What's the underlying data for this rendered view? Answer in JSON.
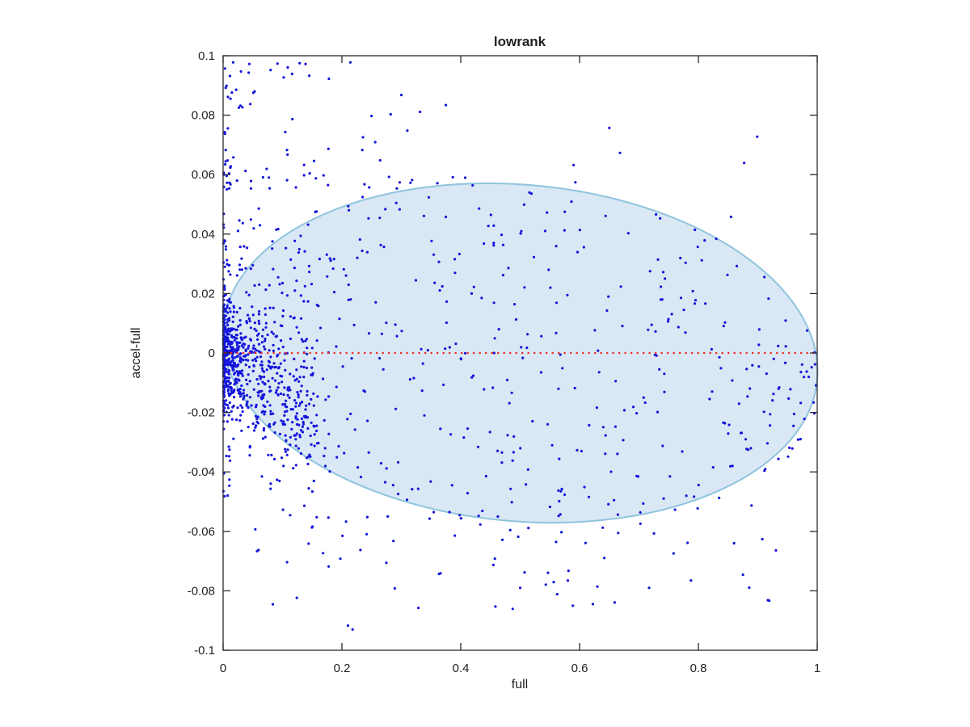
{
  "title": "lowrank",
  "colors": {
    "background": "#ffffff",
    "axis": "#2b2b2b",
    "text": "#1f1f1f",
    "ellipse_fill": "#d9e8f4",
    "ellipse_stroke": "#8fc4de",
    "marker": "#1414dc",
    "zero_line": "#f22b25"
  },
  "chart_data": {
    "type": "scatter",
    "title": "lowrank",
    "xlabel": "full",
    "ylabel": "accel-full",
    "xlim": [
      0,
      1
    ],
    "ylim": [
      -0.1,
      0.1
    ],
    "grid": false,
    "legend": null,
    "x_ticks": {
      "values": [
        0,
        0.2,
        0.4,
        0.6,
        0.8,
        1
      ],
      "labels": [
        "0",
        "0.2",
        "0.4",
        "0.6",
        "0.8",
        "1"
      ]
    },
    "y_ticks": {
      "values": [
        0.1,
        0.08,
        0.06,
        0.04,
        0.02,
        0,
        -0.02,
        -0.04,
        -0.06,
        -0.08,
        -0.1
      ],
      "labels": [
        "0.1",
        "0.08",
        "0.06",
        "0.04",
        "0.02",
        "0",
        "-0.02",
        "-0.04",
        "-0.06",
        "-0.08",
        "-0.1"
      ]
    },
    "ellipse": {
      "shape": "tilted-ellipse",
      "tips": [
        [
          0,
          0.009
        ],
        [
          1,
          -0.009
        ]
      ],
      "vertical_half_extent": 0.0573,
      "fill": "#d9e8f4",
      "stroke": "#8fc4de",
      "stroke_width": 2
    },
    "zero_line": {
      "y": 0,
      "x_range": [
        0,
        1
      ],
      "style": "dotted",
      "color": "#f22b25"
    },
    "marker": {
      "shape": "dot",
      "color": "#1414dc",
      "radius_px": 1.6
    },
    "n_points_approx": 1330,
    "scatter_generator": {
      "seed": 1337,
      "groups": [
        {
          "name": "dense-cluster",
          "n": 660,
          "x": {
            "type": "power",
            "offset": 0.0005,
            "scale": 0.16,
            "exp": 2.4
          },
          "y": {
            "type": "normal-drift",
            "mean_slope": -0.12,
            "sd_base": 0.0085,
            "sd_slope": 0.05
          }
        },
        {
          "name": "cluster-wide-fan",
          "n": 90,
          "x": {
            "type": "power",
            "offset": 0.001,
            "scale": 0.18,
            "exp": 1.8
          },
          "y": {
            "type": "normal-drift",
            "mean_slope": -0.05,
            "sd_base": 0.028,
            "sd_slope": 0.0
          }
        },
        {
          "name": "midfield",
          "n": 430,
          "x": {
            "type": "power",
            "offset": 0.06,
            "scale": 0.94,
            "exp": 1.15
          },
          "y": {
            "type": "envelope-uniform",
            "width_factor": 1.05
          }
        },
        {
          "name": "halo-top-left",
          "n": 66,
          "x": {
            "type": "power",
            "offset": 0.002,
            "scale": 0.33,
            "exp": 2.0
          },
          "y": {
            "type": "band",
            "base": 0.055,
            "range": 0.043,
            "exp": 1.3,
            "sign": 1
          }
        },
        {
          "name": "halo-bottom",
          "n": 42,
          "x": {
            "type": "uniform",
            "min": 0.04,
            "max": 0.76
          },
          "y": {
            "type": "band",
            "base": 0.055,
            "range": 0.04,
            "exp": 2.0,
            "sign": -1
          }
        },
        {
          "name": "halo-right",
          "n": 22,
          "x": {
            "type": "uniform",
            "min": 0.5,
            "max": 0.95
          },
          "y": {
            "type": "band-sym",
            "base": 0.045,
            "range": 0.04,
            "neg_prob": 0.6
          }
        },
        {
          "name": "axis-column",
          "n": 58,
          "x": {
            "type": "power",
            "offset": 0.0005,
            "scale": 0.012,
            "exp": 1.5
          },
          "y": {
            "type": "uniform",
            "min": -0.05,
            "max": 0.09
          }
        }
      ]
    },
    "explicit_points": [
      [
        0.08,
        0.0952
      ],
      [
        0.102,
        0.0927
      ],
      [
        0.145,
        0.0933
      ],
      [
        0.3,
        0.0868
      ],
      [
        0.375,
        0.0834
      ],
      [
        0.65,
        0.0757
      ],
      [
        0.31,
        0.0748
      ],
      [
        0.59,
        0.0632
      ],
      [
        0.053,
        0.088
      ],
      [
        0.03,
        0.0947
      ],
      [
        0.855,
        0.0458
      ],
      [
        0.96,
        -0.0245
      ],
      [
        0.21,
        -0.0917
      ],
      [
        0.218,
        -0.093
      ],
      [
        0.5,
        -0.079
      ],
      [
        0.63,
        -0.0786
      ],
      [
        0.717,
        -0.079
      ],
      [
        0.455,
        -0.0713
      ],
      [
        0.86,
        -0.064
      ],
      [
        0.875,
        -0.0746
      ],
      [
        0.935,
        -0.012
      ],
      [
        0.955,
        -0.0122
      ]
    ]
  }
}
